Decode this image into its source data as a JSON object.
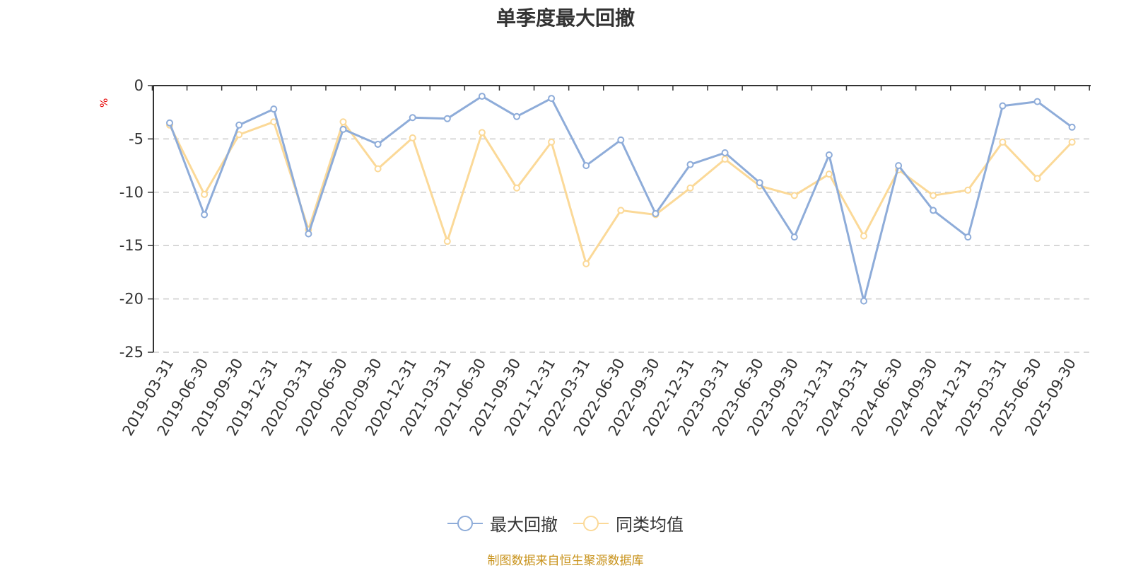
{
  "chart_data": {
    "type": "line",
    "title": "单季度最大回撤",
    "ylabel": "%",
    "ylim": [
      -25,
      0
    ],
    "yticks": [
      0,
      -5,
      -10,
      -15,
      -20,
      -25
    ],
    "grid": true,
    "legend_placement": "bottom-center",
    "categories": [
      "2019-03-31",
      "2019-06-30",
      "2019-09-30",
      "2019-12-31",
      "2020-03-31",
      "2020-06-30",
      "2020-09-30",
      "2020-12-31",
      "2021-03-31",
      "2021-06-30",
      "2021-09-30",
      "2021-12-31",
      "2022-03-31",
      "2022-06-30",
      "2022-09-30",
      "2022-12-31",
      "2023-03-31",
      "2023-06-30",
      "2023-09-30",
      "2023-12-31",
      "2024-03-31",
      "2024-06-30",
      "2024-09-30",
      "2024-12-31",
      "2025-03-31",
      "2025-06-30",
      "2025-09-30"
    ],
    "series": [
      {
        "name": "最大回撤",
        "color": "#8eacd9",
        "values": [
          -3.5,
          -12.1,
          -3.7,
          -2.2,
          -13.9,
          -4.1,
          -5.5,
          -3.0,
          -3.1,
          -1.0,
          -2.9,
          -1.2,
          -7.5,
          -5.1,
          -12.0,
          -7.4,
          -6.3,
          -9.1,
          -14.2,
          -6.5,
          -20.2,
          -7.5,
          -11.7,
          -14.2,
          -1.9,
          -1.5,
          -3.9
        ]
      },
      {
        "name": "同类均值",
        "color": "#fbd998",
        "values": [
          -3.7,
          -10.2,
          -4.6,
          -3.4,
          -13.5,
          -3.4,
          -7.8,
          -4.9,
          -14.6,
          -4.4,
          -9.6,
          -5.3,
          -16.7,
          -11.7,
          -12.1,
          -9.6,
          -6.9,
          -9.4,
          -10.3,
          -8.3,
          -14.1,
          -7.9,
          -10.3,
          -9.8,
          -5.3,
          -8.7,
          -5.3
        ]
      }
    ]
  },
  "source_note": "制图数据来自恒生聚源数据库",
  "colors": {
    "title": "#333333",
    "unit": "#e60000",
    "axis": "#333333",
    "grid": "#cccccc",
    "source": "#c8921a"
  }
}
